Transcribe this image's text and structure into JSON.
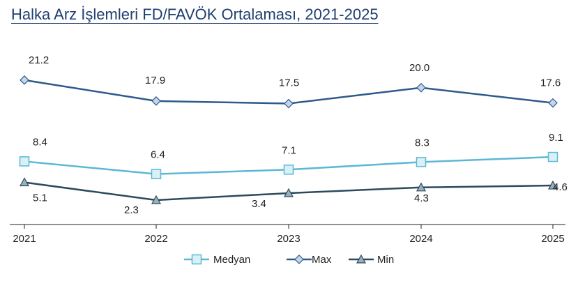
{
  "chart_data": {
    "type": "line",
    "title": "Halka Arz İşlemleri FD/FAVÖK Ortalaması, 2021-2025",
    "categories": [
      "2021",
      "2022",
      "2023",
      "2024",
      "2025"
    ],
    "series": [
      {
        "name": "Medyan",
        "values": [
          8.4,
          6.4,
          7.1,
          8.3,
          9.1
        ],
        "color": "#5bb8d4",
        "marker": "square"
      },
      {
        "name": "Max",
        "values": [
          21.2,
          17.9,
          17.5,
          20.0,
          17.6
        ],
        "color": "#2d5a8c",
        "marker": "diamond"
      },
      {
        "name": "Min",
        "values": [
          5.1,
          2.3,
          3.4,
          4.3,
          4.6
        ],
        "color": "#2b4a5c",
        "marker": "triangle"
      }
    ],
    "data_labels": {
      "Medyan": [
        "8.4",
        "6.4",
        "7.1",
        "8.3",
        "9.1"
      ],
      "Max": [
        "21.2",
        "17.9",
        "17.5",
        "20.0",
        "17.6"
      ],
      "Min": [
        "5.1",
        "2.3",
        "3.4",
        "4.3",
        "4.6"
      ]
    },
    "xlabel": "",
    "ylabel": "",
    "y_axis_visible": false,
    "grid": false,
    "legend": "bottom-center"
  }
}
